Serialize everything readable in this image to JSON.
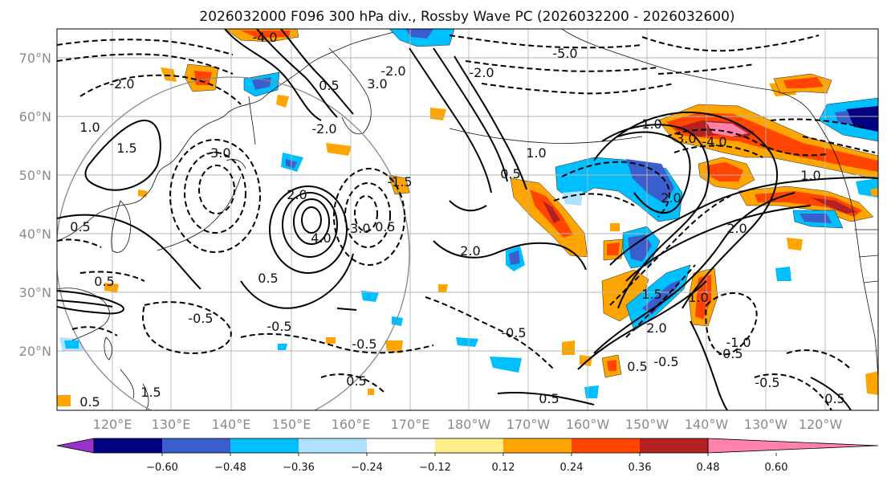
{
  "title": "2026032000 F096 300 hPa div., Rossby Wave PC (2026032200 - 2026032600)",
  "lat_labels": [
    "70°N",
    "60°N",
    "50°N",
    "40°N",
    "30°N",
    "20°N"
  ],
  "lon_labels": [
    "120°E",
    "130°E",
    "140°E",
    "150°E",
    "160°E",
    "170°E",
    "180°W",
    "170°W",
    "160°W",
    "150°W",
    "140°W",
    "130°W",
    "120°W"
  ],
  "colorbar": {
    "ticks": [
      "−0.60",
      "−0.48",
      "−0.36",
      "−0.24",
      "−0.12",
      "0.12",
      "0.24",
      "0.36",
      "0.48",
      "0.60"
    ],
    "colors": [
      "#9932cc",
      "#000080",
      "#3a5fcd",
      "#00bfff",
      "#b0e2ff",
      "#ffffff",
      "#ffec8b",
      "#ffa500",
      "#ff4500",
      "#b22222",
      "#ff82ab"
    ]
  },
  "contour_labels": {
    "positive": [
      "0.5",
      "1.0",
      "1.5",
      "2.0",
      "3.0",
      "4.0"
    ],
    "negative": [
      "-0.5",
      "-1.0",
      "-1.5",
      "-2.0",
      "-3.0",
      "-4.0",
      "-5.0"
    ]
  }
}
